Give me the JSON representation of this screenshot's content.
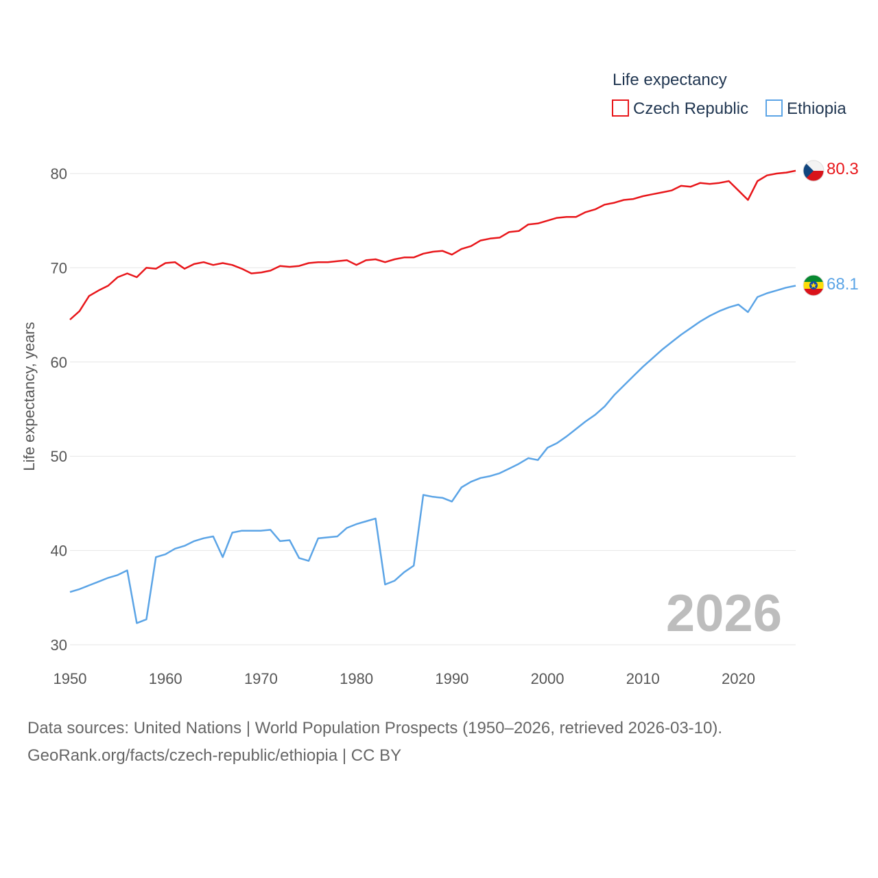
{
  "chart_data": {
    "type": "line",
    "title": "Life expectancy",
    "xlabel": "",
    "ylabel": "Life expectancy, years",
    "xlim": [
      1950,
      2026
    ],
    "ylim": [
      30,
      82
    ],
    "x_ticks": [
      1950,
      1960,
      1970,
      1980,
      1990,
      2000,
      2010,
      2020
    ],
    "y_ticks": [
      30,
      40,
      50,
      60,
      70,
      80
    ],
    "grid": true,
    "legend_position": "top-right",
    "current_year": "2026",
    "series": [
      {
        "name": "Czech Republic",
        "color": "#e8161a",
        "flag": "czech-flag",
        "end_label": "80.3",
        "x": [
          1950,
          1951,
          1952,
          1953,
          1954,
          1955,
          1956,
          1957,
          1958,
          1959,
          1960,
          1961,
          1962,
          1963,
          1964,
          1965,
          1966,
          1967,
          1968,
          1969,
          1970,
          1971,
          1972,
          1973,
          1974,
          1975,
          1976,
          1977,
          1978,
          1979,
          1980,
          1981,
          1982,
          1983,
          1984,
          1985,
          1986,
          1987,
          1988,
          1989,
          1990,
          1991,
          1992,
          1993,
          1994,
          1995,
          1996,
          1997,
          1998,
          1999,
          2000,
          2001,
          2002,
          2003,
          2004,
          2005,
          2006,
          2007,
          2008,
          2009,
          2010,
          2011,
          2012,
          2013,
          2014,
          2015,
          2016,
          2017,
          2018,
          2019,
          2020,
          2021,
          2022,
          2023,
          2024,
          2025,
          2026
        ],
        "values": [
          64.5,
          65.4,
          67.0,
          67.6,
          68.1,
          69.0,
          69.4,
          69.0,
          70.0,
          69.9,
          70.5,
          70.6,
          69.9,
          70.4,
          70.6,
          70.3,
          70.5,
          70.3,
          69.9,
          69.4,
          69.5,
          69.7,
          70.2,
          70.1,
          70.2,
          70.5,
          70.6,
          70.6,
          70.7,
          70.8,
          70.3,
          70.8,
          70.9,
          70.6,
          70.9,
          71.1,
          71.1,
          71.5,
          71.7,
          71.8,
          71.4,
          72.0,
          72.3,
          72.9,
          73.1,
          73.2,
          73.8,
          73.9,
          74.6,
          74.7,
          75.0,
          75.3,
          75.4,
          75.4,
          75.9,
          76.2,
          76.7,
          76.9,
          77.2,
          77.3,
          77.6,
          77.8,
          78.0,
          78.2,
          78.7,
          78.6,
          79.0,
          78.9,
          79.0,
          79.2,
          78.2,
          77.2,
          79.2,
          79.8,
          80.0,
          80.1,
          80.3
        ]
      },
      {
        "name": "Ethiopia",
        "color": "#5ba4e6",
        "flag": "ethiopia-flag",
        "end_label": "68.1",
        "x": [
          1950,
          1951,
          1952,
          1953,
          1954,
          1955,
          1956,
          1957,
          1958,
          1959,
          1960,
          1961,
          1962,
          1963,
          1964,
          1965,
          1966,
          1967,
          1968,
          1969,
          1970,
          1971,
          1972,
          1973,
          1974,
          1975,
          1976,
          1977,
          1978,
          1979,
          1980,
          1981,
          1982,
          1983,
          1984,
          1985,
          1986,
          1987,
          1988,
          1989,
          1990,
          1991,
          1992,
          1993,
          1994,
          1995,
          1996,
          1997,
          1998,
          1999,
          2000,
          2001,
          2002,
          2003,
          2004,
          2005,
          2006,
          2007,
          2008,
          2009,
          2010,
          2011,
          2012,
          2013,
          2014,
          2015,
          2016,
          2017,
          2018,
          2019,
          2020,
          2021,
          2022,
          2023,
          2024,
          2025,
          2026
        ],
        "values": [
          35.6,
          35.9,
          36.3,
          36.7,
          37.1,
          37.4,
          37.9,
          32.3,
          32.7,
          39.3,
          39.6,
          40.2,
          40.5,
          41.0,
          41.3,
          41.5,
          39.3,
          41.9,
          42.1,
          42.1,
          42.1,
          42.2,
          41.0,
          41.1,
          39.2,
          38.9,
          41.3,
          41.4,
          41.5,
          42.4,
          42.8,
          43.1,
          43.4,
          36.4,
          36.8,
          37.7,
          38.4,
          45.9,
          45.7,
          45.6,
          45.2,
          46.7,
          47.3,
          47.7,
          47.9,
          48.2,
          48.7,
          49.2,
          49.8,
          49.6,
          50.9,
          51.4,
          52.1,
          52.9,
          53.7,
          54.4,
          55.3,
          56.5,
          57.5,
          58.5,
          59.5,
          60.4,
          61.3,
          62.1,
          62.9,
          63.6,
          64.3,
          64.9,
          65.4,
          65.8,
          66.1,
          65.3,
          66.9,
          67.3,
          67.6,
          67.9,
          68.1
        ]
      }
    ]
  },
  "source": {
    "line1": "Data sources: United Nations | World Population Prospects (1950–2026, retrieved 2026-03-10).",
    "line2": "GeoRank.org/facts/czech-republic/ethiopia | CC BY"
  }
}
